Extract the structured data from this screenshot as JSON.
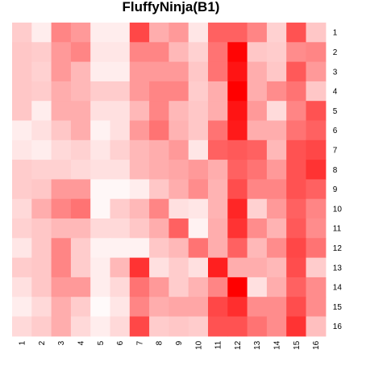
{
  "chart_data": {
    "type": "heatmap",
    "title": "FluffyNinja(B1)",
    "x_labels": [
      "1",
      "2",
      "3",
      "4",
      "5",
      "6",
      "7",
      "8",
      "9",
      "10",
      "11",
      "12",
      "13",
      "14",
      "15",
      "16"
    ],
    "y_labels": [
      "1",
      "2",
      "3",
      "4",
      "5",
      "6",
      "7",
      "8",
      "9",
      "10",
      "11",
      "12",
      "13",
      "14",
      "15",
      "16"
    ],
    "value_range": [
      0,
      1
    ],
    "color_low": "#ffffff",
    "color_high": "#ff0000",
    "values": [
      [
        0.2,
        0.07,
        0.48,
        0.4,
        0.07,
        0.07,
        0.72,
        0.32,
        0.4,
        0.1,
        0.62,
        0.62,
        0.48,
        0.18,
        0.68,
        0.22
      ],
      [
        0.22,
        0.2,
        0.4,
        0.48,
        0.1,
        0.1,
        0.48,
        0.48,
        0.28,
        0.18,
        0.55,
        0.98,
        0.22,
        0.2,
        0.45,
        0.48
      ],
      [
        0.22,
        0.18,
        0.4,
        0.28,
        0.07,
        0.07,
        0.4,
        0.4,
        0.4,
        0.22,
        0.55,
        0.92,
        0.32,
        0.22,
        0.65,
        0.4
      ],
      [
        0.22,
        0.2,
        0.32,
        0.28,
        0.2,
        0.2,
        0.4,
        0.48,
        0.48,
        0.2,
        0.32,
        1.0,
        0.32,
        0.45,
        0.55,
        0.22
      ],
      [
        0.22,
        0.07,
        0.32,
        0.32,
        0.12,
        0.12,
        0.28,
        0.48,
        0.28,
        0.22,
        0.32,
        0.92,
        0.4,
        0.14,
        0.48,
        0.68
      ],
      [
        0.07,
        0.12,
        0.22,
        0.32,
        0.05,
        0.12,
        0.4,
        0.55,
        0.3,
        0.22,
        0.55,
        0.9,
        0.32,
        0.32,
        0.55,
        0.62
      ],
      [
        0.1,
        0.07,
        0.15,
        0.18,
        0.1,
        0.18,
        0.28,
        0.32,
        0.4,
        0.1,
        0.62,
        0.65,
        0.62,
        0.28,
        0.68,
        0.72
      ],
      [
        0.2,
        0.18,
        0.18,
        0.15,
        0.12,
        0.12,
        0.28,
        0.32,
        0.35,
        0.4,
        0.32,
        0.62,
        0.55,
        0.4,
        0.68,
        0.8
      ],
      [
        0.2,
        0.22,
        0.4,
        0.4,
        0.03,
        0.03,
        0.07,
        0.22,
        0.32,
        0.45,
        0.3,
        0.7,
        0.48,
        0.48,
        0.68,
        0.62
      ],
      [
        0.15,
        0.32,
        0.48,
        0.55,
        0.03,
        0.2,
        0.28,
        0.48,
        0.12,
        0.1,
        0.3,
        0.85,
        0.18,
        0.4,
        0.62,
        0.48
      ],
      [
        0.18,
        0.22,
        0.28,
        0.28,
        0.15,
        0.15,
        0.22,
        0.32,
        0.62,
        0.05,
        0.32,
        0.8,
        0.45,
        0.3,
        0.65,
        0.45
      ],
      [
        0.1,
        0.22,
        0.48,
        0.2,
        0.05,
        0.05,
        0.05,
        0.22,
        0.28,
        0.55,
        0.32,
        0.62,
        0.28,
        0.45,
        0.72,
        0.55
      ],
      [
        0.2,
        0.22,
        0.48,
        0.2,
        0.07,
        0.28,
        0.8,
        0.12,
        0.2,
        0.12,
        0.88,
        0.32,
        0.32,
        0.28,
        0.7,
        0.2
      ],
      [
        0.12,
        0.22,
        0.4,
        0.4,
        0.07,
        0.15,
        0.55,
        0.4,
        0.2,
        0.3,
        0.48,
        1.0,
        0.12,
        0.32,
        0.62,
        0.45
      ],
      [
        0.07,
        0.15,
        0.32,
        0.2,
        0.02,
        0.1,
        0.48,
        0.32,
        0.35,
        0.35,
        0.72,
        0.82,
        0.45,
        0.45,
        0.7,
        0.45
      ],
      [
        0.15,
        0.2,
        0.32,
        0.15,
        0.07,
        0.15,
        0.72,
        0.2,
        0.22,
        0.2,
        0.68,
        0.68,
        0.55,
        0.45,
        0.8,
        0.25
      ]
    ]
  }
}
